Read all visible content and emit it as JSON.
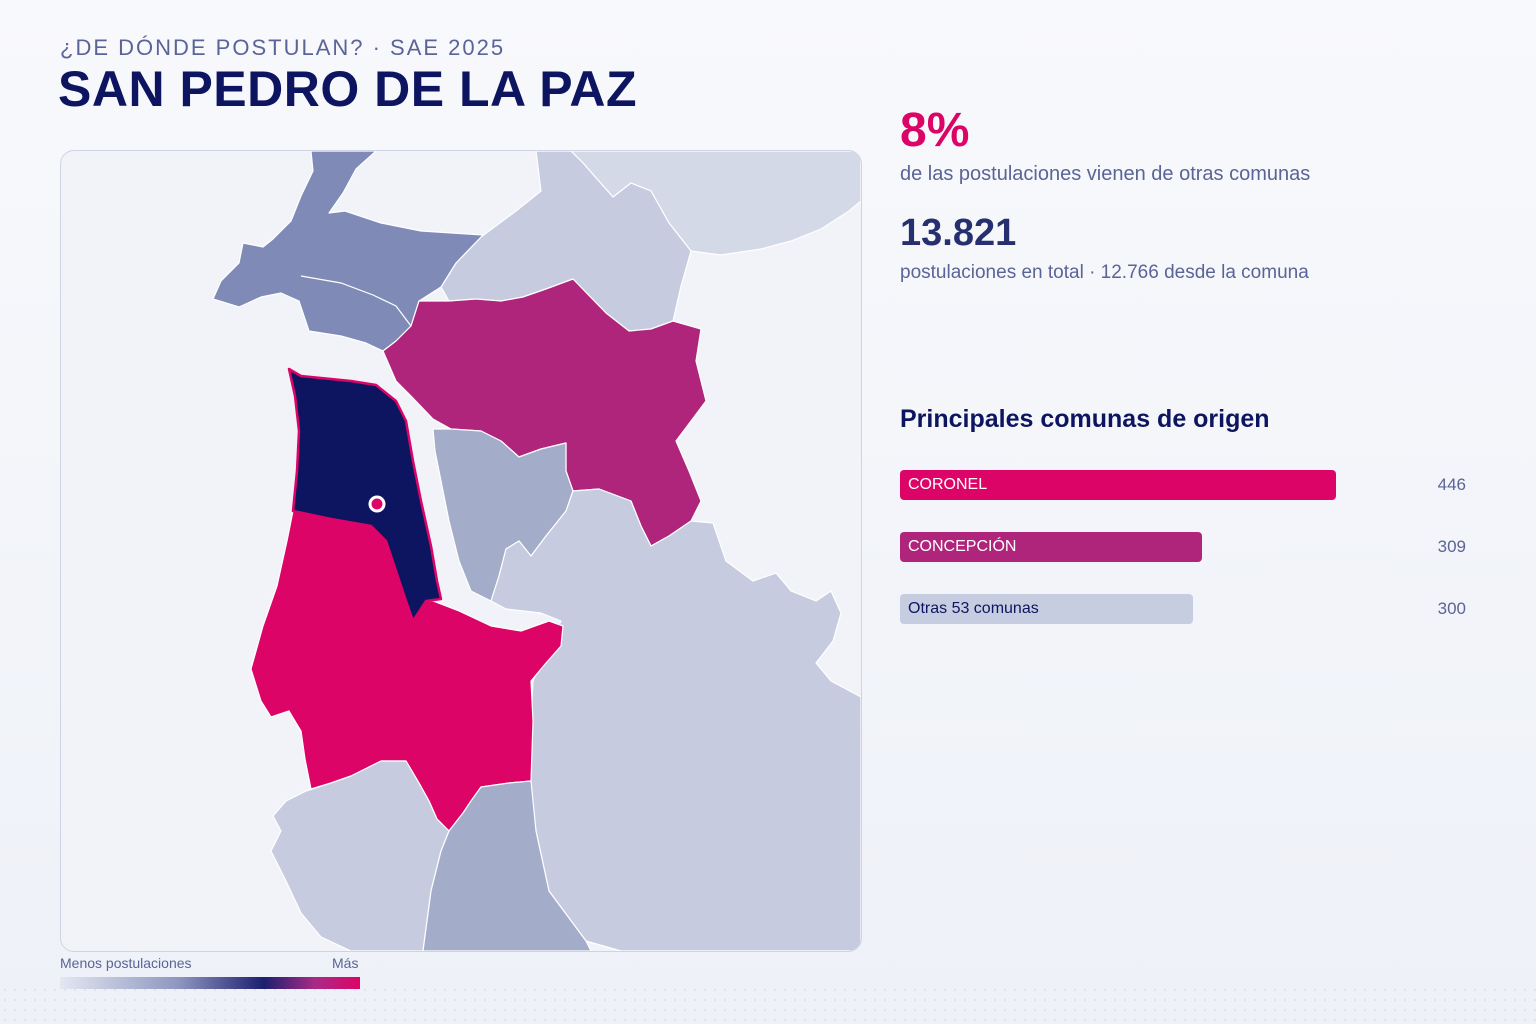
{
  "header": {
    "kicker": "¿DE DÓNDE POSTULAN? · SAE 2025",
    "title": "SAN PEDRO DE LA PAZ"
  },
  "stats": {
    "percent_value": "8%",
    "percent_label": "de las postulaciones vienen de otras comunas",
    "total_value": "13.821",
    "total_label": "postulaciones en total · 12.766 desde la comuna"
  },
  "ranking": {
    "title": "Principales comunas de origen",
    "max_value": 446,
    "items": [
      {
        "label": "CORONEL",
        "value": 446,
        "display": "446",
        "color": "#dd0468",
        "text_color": "#ffffff"
      },
      {
        "label": "CONCEPCIÓN",
        "value": 309,
        "display": "309",
        "color": "#b0257c",
        "text_color": "#ffffff"
      },
      {
        "label": "Otras 53 comunas",
        "value": 300,
        "display": "300",
        "color": "#c7cde1",
        "text_color": "#0d1560"
      }
    ]
  },
  "legend": {
    "min_label": "Menos postulaciones",
    "max_label": "Más"
  },
  "map": {
    "colors": {
      "selected": "#0d1560",
      "highest": "#dd0468",
      "high": "#b0257c",
      "medium": "#7f8bb6",
      "medium_low": "#a3acc9",
      "low": "#c6cbdf",
      "lowest": "#d4d9e8",
      "water": "#f1f3f9",
      "marker": "#dd0468"
    }
  }
}
